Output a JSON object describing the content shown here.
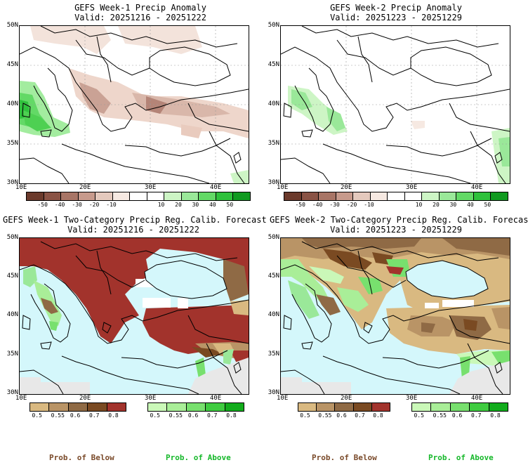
{
  "panels": [
    {
      "title": "GEFS Week-1 Precip Anomaly",
      "valid": "Valid: 20251216 - 20251222"
    },
    {
      "title": "GEFS Week-2 Precip Anomaly",
      "valid": "Valid: 20251223 - 20251229"
    },
    {
      "title": "GEFS Week-1 Two-Category Precip Reg. Calib. Forecast",
      "valid": "Valid: 20251216 - 20251222"
    },
    {
      "title": "GEFS Week-2 Two-Category Precip Reg. Calib. Forecast",
      "valid": "Valid: 20251223 - 20251229"
    }
  ],
  "axes": {
    "lat_top": [
      "50N",
      "45N",
      "40N",
      "35N",
      "30N"
    ],
    "lat_bottom": [
      "50N",
      "45N",
      "40N",
      "35N",
      "30N"
    ],
    "lon": [
      "10E",
      "20E",
      "30E",
      "40E"
    ]
  },
  "anomaly_scale": {
    "labels": [
      "-50",
      "-40",
      "-30",
      "-20",
      "-10",
      "10",
      "20",
      "30",
      "40",
      "50"
    ],
    "colors": [
      "#6b3a2c",
      "#8a5345",
      "#a87566",
      "#c79a8c",
      "#e4c9bd",
      "#f6e9e2",
      "#ffffff",
      "#ffffff",
      "#cdf5c5",
      "#9ae899",
      "#63d966",
      "#2fc13c",
      "#109a20"
    ]
  },
  "below_scale": {
    "labels": [
      "0.5",
      "0.55",
      "0.6",
      "0.7",
      "0.8"
    ],
    "colors": [
      "#d9b981",
      "#b99466",
      "#8f6a45",
      "#7a4a22",
      "#a2332c"
    ]
  },
  "above_scale": {
    "labels": [
      "0.5",
      "0.55",
      "0.6",
      "0.7",
      "0.8"
    ],
    "colors": [
      "#caf8b8",
      "#a9ee98",
      "#78e06e",
      "#3fcc40",
      "#12ac1c"
    ]
  },
  "footer": {
    "below": "Prob. of Below",
    "above": "Prob. of Above"
  },
  "colors": {
    "sea": "#d4f7fb",
    "land_white": "#ffffff",
    "nodata": "#e8e8e8",
    "below_dark": "#a2332c",
    "below_light": "#d9b981",
    "above": "#9ae899"
  }
}
